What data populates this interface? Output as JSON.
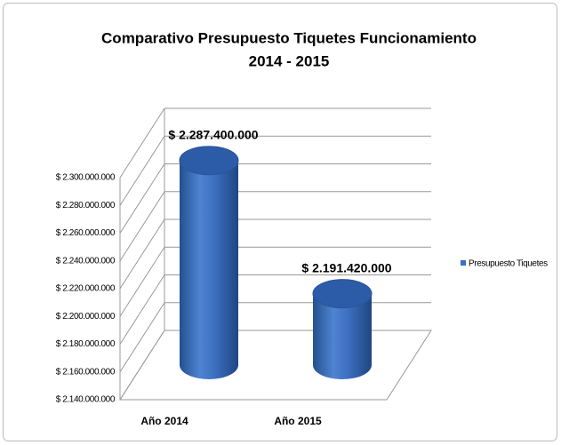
{
  "chart_data": {
    "type": "bar3d-cylinder",
    "title": [
      "Comparativo Presupuesto Tiquetes Funcionamiento",
      "2014 - 2015"
    ],
    "categories": [
      "Año 2014",
      "Año 2015"
    ],
    "series": [
      {
        "name": "Presupuesto Tiquetes",
        "color": "#3c6fc0",
        "values": [
          2287400000,
          2191420000
        ],
        "value_labels": [
          "$ 2.287.400.000",
          "$ 2.191.420.000"
        ]
      }
    ],
    "ylim": [
      2140000000,
      2300000000
    ],
    "yticks": [
      {
        "value": 2140000000,
        "label": "$ 2.140.000.000"
      },
      {
        "value": 2160000000,
        "label": "$ 2.160.000.000"
      },
      {
        "value": 2180000000,
        "label": "$ 2.180.000.000"
      },
      {
        "value": 2200000000,
        "label": "$ 2.200.000.000"
      },
      {
        "value": 2220000000,
        "label": "$ 2.220.000.000"
      },
      {
        "value": 2240000000,
        "label": "$ 2.240.000.000"
      },
      {
        "value": 2260000000,
        "label": "$ 2.260.000.000"
      },
      {
        "value": 2280000000,
        "label": "$ 2.280.000.000"
      },
      {
        "value": 2300000000,
        "label": "$ 2.300.000.000"
      }
    ],
    "grid": true,
    "legend": "right"
  }
}
